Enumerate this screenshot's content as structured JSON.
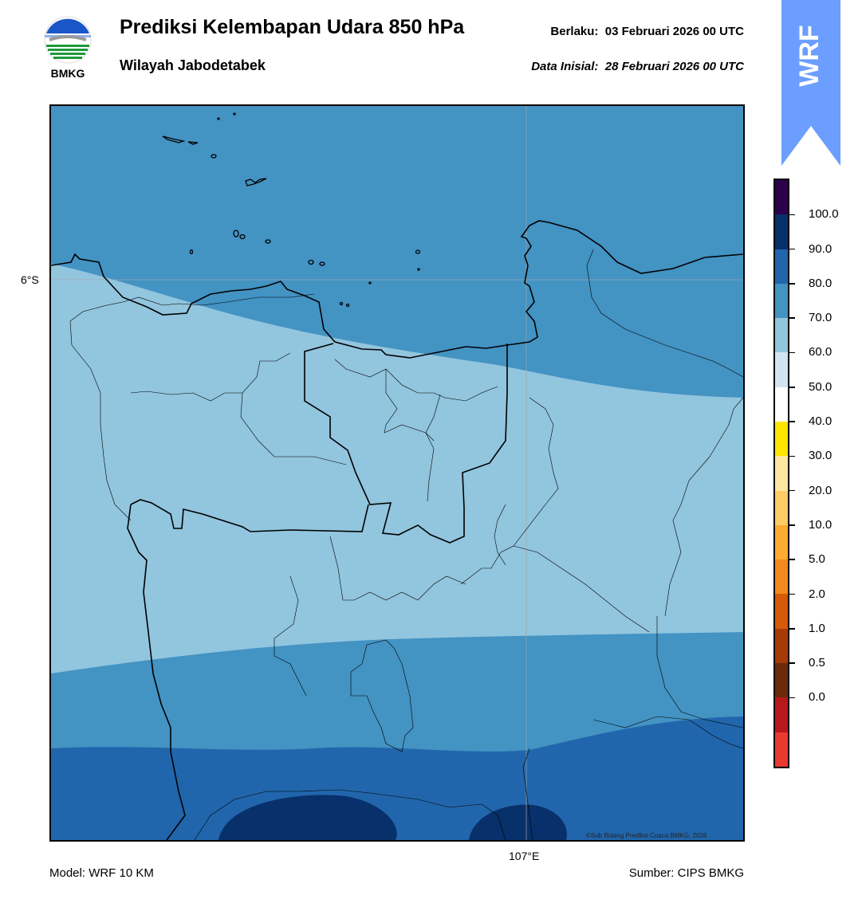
{
  "header": {
    "title": "Prediksi Kelembapan Udara 850 hPa",
    "subtitle": "Wilayah Jabodetabek",
    "valid_label": "Berlaku:  03 Februari 2026 00 UTC",
    "init_label": "Data Inisial:  28 Februari 2026 00 UTC"
  },
  "logo": {
    "text": "BMKG"
  },
  "badge": {
    "text": "WRF",
    "color": "#6b9eff"
  },
  "map": {
    "lat_label": "6°S",
    "lon_label": "107°E",
    "copyright": "©Sub Bidang Prediksi Cuaca BMKG, 2026"
  },
  "footer": {
    "model": "Model: WRF 10 KM",
    "source": "Sumber: CIPS BMKG"
  },
  "colorbar": {
    "labels": [
      "100.0",
      "90.0",
      "80.0",
      "70.0",
      "60.0",
      "50.0",
      "40.0",
      "30.0",
      "20.0",
      "10.0",
      "5.0",
      "2.0",
      "1.0",
      "0.5",
      "0.0"
    ],
    "colors_top_to_bottom": [
      "#2d004b",
      "#08306b",
      "#2166ac",
      "#4393c3",
      "#92c5de",
      "#d1e5f0",
      "#ffffff",
      "#ffe600",
      "#ffe7a1",
      "#ffcc66",
      "#ffaa33",
      "#f08a1c",
      "#d65a0a",
      "#a63b06",
      "#6b2a0a",
      "#b8171d",
      "#e83a30"
    ]
  }
}
